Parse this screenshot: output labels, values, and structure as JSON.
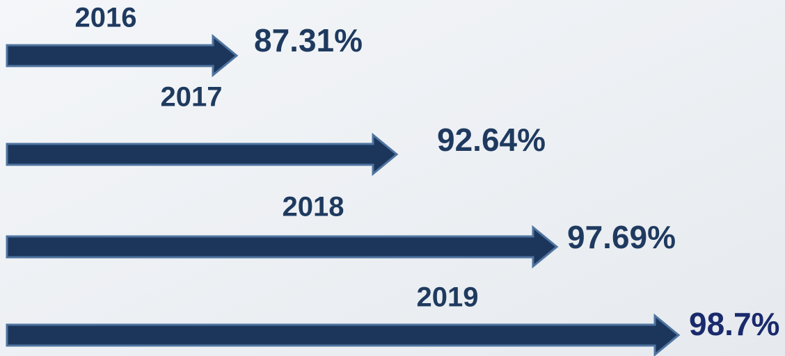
{
  "items": [
    {
      "year": "2016",
      "value": "87.31%"
    },
    {
      "year": "2017",
      "value": "92.64%"
    },
    {
      "year": "2018",
      "value": "97.69%"
    },
    {
      "year": "2019",
      "value": "98.7%"
    }
  ]
}
